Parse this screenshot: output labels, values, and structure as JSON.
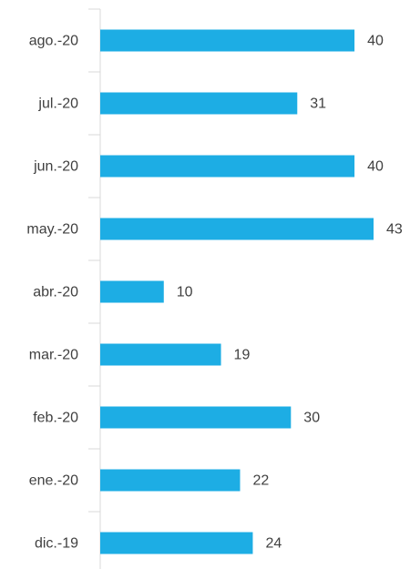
{
  "chart_data": {
    "type": "barh",
    "categories": [
      "ago.-20",
      "jul.-20",
      "jun.-20",
      "may.-20",
      "abr.-20",
      "mar.-20",
      "feb.-20",
      "ene.-20",
      "dic.-19"
    ],
    "values": [
      40,
      31,
      40,
      43,
      10,
      19,
      30,
      22,
      24
    ],
    "color": "#1dade4"
  }
}
